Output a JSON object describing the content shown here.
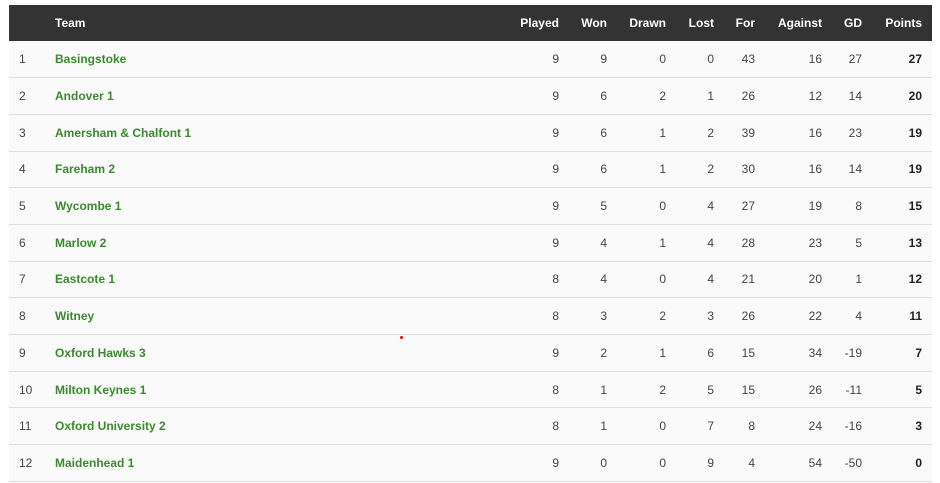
{
  "headers": {
    "pos": "",
    "team": "Team",
    "played": "Played",
    "won": "Won",
    "drawn": "Drawn",
    "lost": "Lost",
    "for": "For",
    "against": "Against",
    "gd": "GD",
    "points": "Points"
  },
  "rows": [
    {
      "pos": "1",
      "team": "Basingstoke",
      "played": "9",
      "won": "9",
      "drawn": "0",
      "lost": "0",
      "for": "43",
      "against": "16",
      "gd": "27",
      "points": "27"
    },
    {
      "pos": "2",
      "team": "Andover 1",
      "played": "9",
      "won": "6",
      "drawn": "2",
      "lost": "1",
      "for": "26",
      "against": "12",
      "gd": "14",
      "points": "20"
    },
    {
      "pos": "3",
      "team": "Amersham & Chalfont 1",
      "played": "9",
      "won": "6",
      "drawn": "1",
      "lost": "2",
      "for": "39",
      "against": "16",
      "gd": "23",
      "points": "19"
    },
    {
      "pos": "4",
      "team": "Fareham 2",
      "played": "9",
      "won": "6",
      "drawn": "1",
      "lost": "2",
      "for": "30",
      "against": "16",
      "gd": "14",
      "points": "19"
    },
    {
      "pos": "5",
      "team": "Wycombe 1",
      "played": "9",
      "won": "5",
      "drawn": "0",
      "lost": "4",
      "for": "27",
      "against": "19",
      "gd": "8",
      "points": "15"
    },
    {
      "pos": "6",
      "team": "Marlow 2",
      "played": "9",
      "won": "4",
      "drawn": "1",
      "lost": "4",
      "for": "28",
      "against": "23",
      "gd": "5",
      "points": "13"
    },
    {
      "pos": "7",
      "team": "Eastcote 1",
      "played": "8",
      "won": "4",
      "drawn": "0",
      "lost": "4",
      "for": "21",
      "against": "20",
      "gd": "1",
      "points": "12"
    },
    {
      "pos": "8",
      "team": "Witney",
      "played": "8",
      "won": "3",
      "drawn": "2",
      "lost": "3",
      "for": "26",
      "against": "22",
      "gd": "4",
      "points": "11"
    },
    {
      "pos": "9",
      "team": "Oxford Hawks 3",
      "played": "9",
      "won": "2",
      "drawn": "1",
      "lost": "6",
      "for": "15",
      "against": "34",
      "gd": "-19",
      "points": "7"
    },
    {
      "pos": "10",
      "team": "Milton Keynes 1",
      "played": "8",
      "won": "1",
      "drawn": "2",
      "lost": "5",
      "for": "15",
      "against": "26",
      "gd": "-11",
      "points": "5"
    },
    {
      "pos": "11",
      "team": "Oxford University 2",
      "played": "8",
      "won": "1",
      "drawn": "0",
      "lost": "7",
      "for": "8",
      "against": "24",
      "gd": "-16",
      "points": "3"
    },
    {
      "pos": "12",
      "team": "Maidenhead 1",
      "played": "9",
      "won": "0",
      "drawn": "0",
      "lost": "9",
      "for": "4",
      "against": "54",
      "gd": "-50",
      "points": "0"
    }
  ],
  "colors": {
    "header_bg": "#333333",
    "team_link": "#3a8a2e",
    "row_bg": "#fafafa"
  }
}
